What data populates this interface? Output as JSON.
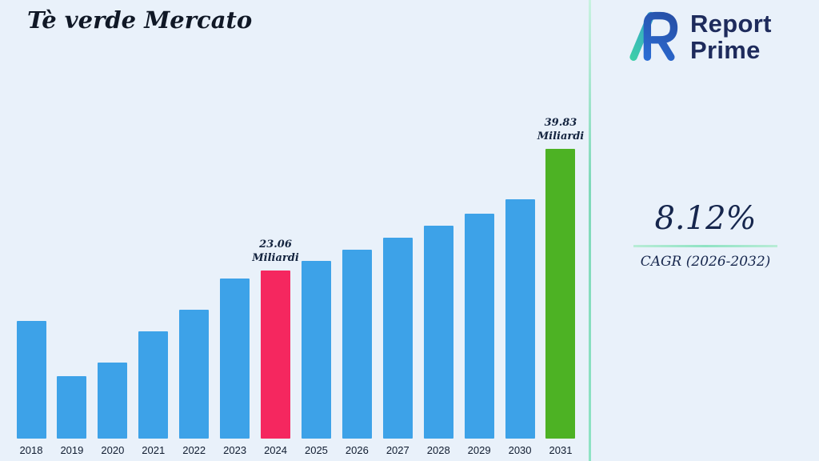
{
  "title": "Tè verde Mercato",
  "logo": {
    "line1": "Report",
    "line2": "Prime"
  },
  "stats": {
    "cagr_value": "8.12%",
    "cagr_label": "CAGR (2026-2032)"
  },
  "colors": {
    "background": "#e9f1fa",
    "bar_default": "#3da2e8",
    "bar_highlight_2024": "#f5275f",
    "bar_highlight_2031": "#4db224",
    "accent_line": "#8fe3c4",
    "navy": "#1e2b5c"
  },
  "chart_data": {
    "type": "bar",
    "title": "Tè verde Mercato",
    "unit": "Miliardi",
    "categories": [
      "2018",
      "2019",
      "2020",
      "2021",
      "2022",
      "2023",
      "2024",
      "2025",
      "2026",
      "2027",
      "2028",
      "2029",
      "2030",
      "2031"
    ],
    "values": [
      16.2,
      8.6,
      10.5,
      14.7,
      17.7,
      22.0,
      23.06,
      24.4,
      26.0,
      27.6,
      29.3,
      30.9,
      32.9,
      39.83
    ],
    "bar_colors": [
      "#3da2e8",
      "#3da2e8",
      "#3da2e8",
      "#3da2e8",
      "#3da2e8",
      "#3da2e8",
      "#f5275f",
      "#3da2e8",
      "#3da2e8",
      "#3da2e8",
      "#3da2e8",
      "#3da2e8",
      "#3da2e8",
      "#4db224"
    ],
    "annotations": [
      {
        "index": 6,
        "lines": [
          "23.06",
          "Miliardi"
        ]
      },
      {
        "index": 13,
        "lines": [
          "39.83",
          "Miliardi"
        ]
      }
    ],
    "ylim": [
      0,
      42
    ],
    "xlabel": "",
    "ylabel": "",
    "grid": false,
    "legend": false
  }
}
